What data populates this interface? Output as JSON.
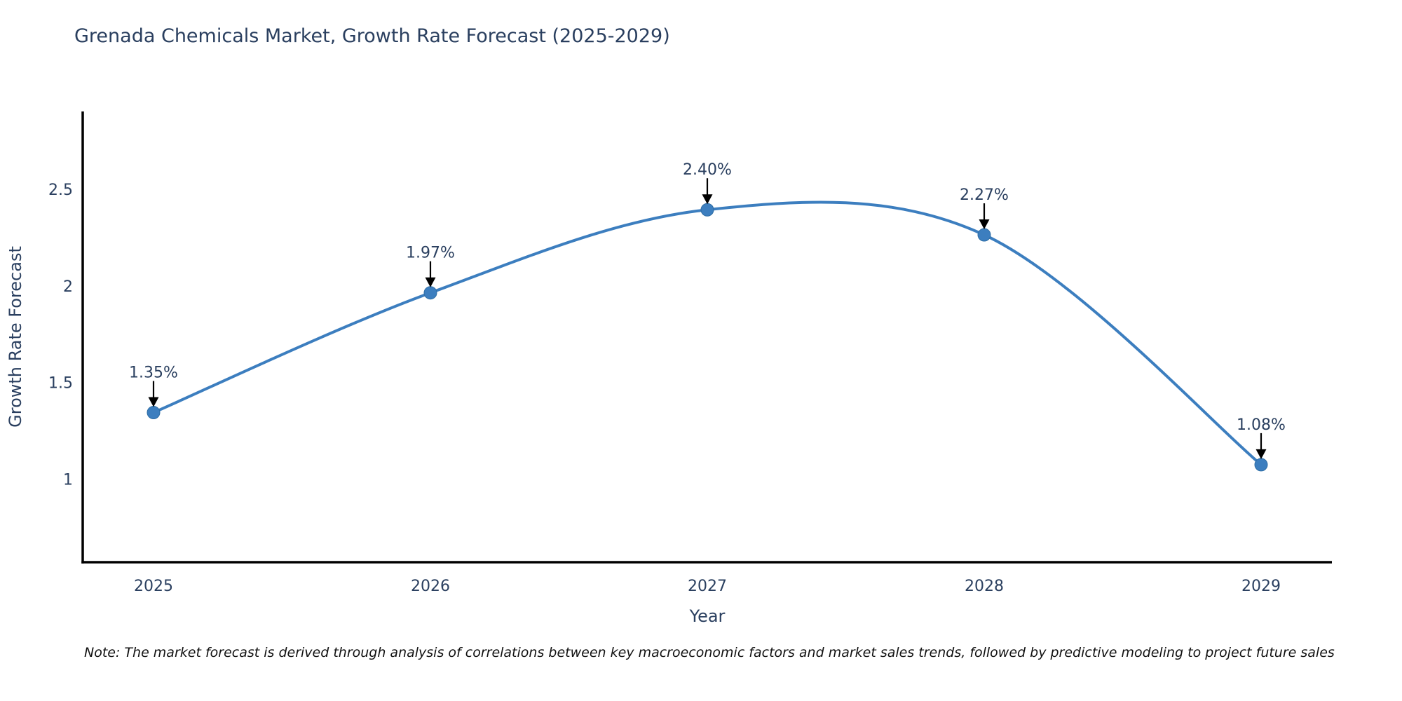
{
  "title": "Grenada Chemicals Market, Growth Rate Forecast (2025-2029)",
  "footnote": "Note: The market forecast is derived through analysis of correlations between key macroeconomic factors and market sales trends, followed by predictive modeling to project future sales",
  "chart_data": {
    "type": "line",
    "title": "Grenada Chemicals Market, Growth Rate Forecast (2025-2029)",
    "categories": [
      "2025",
      "2026",
      "2027",
      "2028",
      "2029"
    ],
    "series": [
      {
        "name": "Growth Rate Forecast",
        "values": [
          1.35,
          1.97,
          2.4,
          2.27,
          1.08
        ]
      }
    ],
    "point_labels": [
      "1.35%",
      "1.97%",
      "2.40%",
      "2.27%",
      "1.08%"
    ],
    "xlabel": "Year",
    "ylabel": "Growth Rate Forecast",
    "ytick_labels": [
      "1",
      "1.5",
      "2",
      "2.5"
    ],
    "ytick_values": [
      1,
      1.5,
      2,
      2.5
    ],
    "ylim": [
      0.575,
      2.909
    ],
    "line_shape": "spline",
    "grid": false,
    "legend": "none",
    "annotations": "value labels with down arrows above each data point",
    "colors": {
      "line": "#3c7ebf",
      "marker": "#3c7ebf",
      "marker_edge": "#2e6da4",
      "axis": "#000000",
      "text": "#2a3f5f",
      "annotation": "#2a3f5f",
      "note": "#111111"
    }
  }
}
